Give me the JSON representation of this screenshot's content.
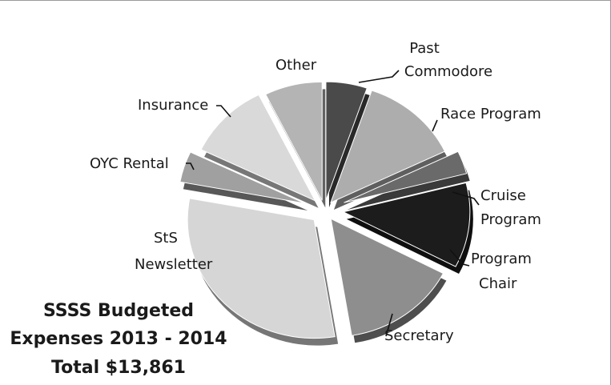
{
  "chart_data": {
    "type": "pie",
    "title_lines": [
      "SSSS Budgeted",
      "Expenses 2013 - 2014",
      "Total $13,861"
    ],
    "slices": [
      {
        "label_lines": [
          "Past",
          "Commodore"
        ],
        "value": 5.0,
        "color": "#4a4a4a"
      },
      {
        "label_lines": [
          "Race Program"
        ],
        "value": 12.0,
        "color": "#adadad"
      },
      {
        "label_lines": [
          "Cruise",
          "Program"
        ],
        "value": 3.0,
        "color": "#6a6a6a"
      },
      {
        "label_lines": [
          "Program",
          "Chair"
        ],
        "value": 11.0,
        "color": "#1c1c1c"
      },
      {
        "label_lines": [
          "Secretary"
        ],
        "value": 14.0,
        "color": "#8e8e8e"
      },
      {
        "label_lines": [
          "StS",
          "Newsletter"
        ],
        "value": 29.0,
        "color": "#d6d6d6"
      },
      {
        "label_lines": [
          "OYC Rental"
        ],
        "value": 4.0,
        "color": "#a0a0a0"
      },
      {
        "label_lines": [
          "Insurance"
        ],
        "value": 10.0,
        "color": "#d9d9d9"
      },
      {
        "label_lines": [
          "Other"
        ],
        "value": 7.0,
        "color": "#b4b4b4"
      }
    ],
    "style": "exploded-3d"
  }
}
